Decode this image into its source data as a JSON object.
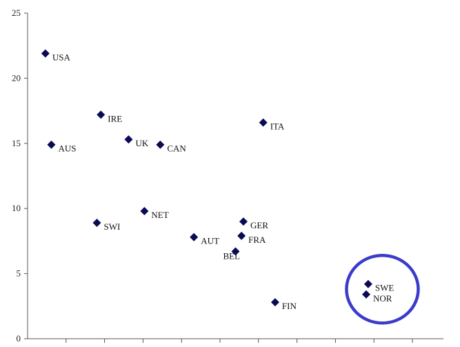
{
  "chart_data": {
    "type": "scatter",
    "title": "",
    "xlabel": "",
    "ylabel": "",
    "ylim": [
      0,
      25
    ],
    "yticks": [
      "0",
      "5",
      "10",
      "15",
      "20",
      "25"
    ],
    "xlim": [
      0,
      10.5
    ],
    "x_tick_count": 10,
    "grid": false,
    "marker_color": "#0a0a55",
    "highlight": {
      "points": [
        "SWE",
        "NOR"
      ],
      "color": "#3b3bcc"
    },
    "points": [
      {
        "label": "USA",
        "x": 0.45,
        "y": 21.9
      },
      {
        "label": "AUS",
        "x": 0.6,
        "y": 14.9
      },
      {
        "label": "IRE",
        "x": 1.85,
        "y": 17.2
      },
      {
        "label": "UK",
        "x": 2.55,
        "y": 15.3
      },
      {
        "label": "CAN",
        "x": 3.35,
        "y": 14.9
      },
      {
        "label": "ITA",
        "x": 5.95,
        "y": 16.6
      },
      {
        "label": "NET",
        "x": 2.95,
        "y": 9.8
      },
      {
        "label": "SWI",
        "x": 1.75,
        "y": 8.9
      },
      {
        "label": "GER",
        "x": 5.45,
        "y": 9.0
      },
      {
        "label": "FRA",
        "x": 5.4,
        "y": 7.9
      },
      {
        "label": "AUT",
        "x": 4.2,
        "y": 7.8
      },
      {
        "label": "BEL",
        "x": 5.25,
        "y": 6.7
      },
      {
        "label": "FIN",
        "x": 6.25,
        "y": 2.8
      },
      {
        "label": "SWE",
        "x": 8.6,
        "y": 4.2
      },
      {
        "label": "NOR",
        "x": 8.55,
        "y": 3.4
      }
    ]
  }
}
